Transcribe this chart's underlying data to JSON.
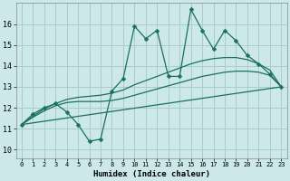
{
  "xlabel": "Humidex (Indice chaleur)",
  "bg_color": "#cce8e8",
  "grid_color": "#aacccc",
  "line_color": "#1a7060",
  "x_ticks": [
    0,
    1,
    2,
    3,
    4,
    5,
    6,
    7,
    8,
    9,
    10,
    11,
    12,
    13,
    14,
    15,
    16,
    17,
    18,
    19,
    20,
    21,
    22,
    23
  ],
  "y_ticks": [
    10,
    11,
    12,
    13,
    14,
    15,
    16
  ],
  "xlim": [
    -0.5,
    23.5
  ],
  "ylim": [
    9.6,
    17.0
  ],
  "main_series": {
    "x": [
      0,
      1,
      2,
      3,
      4,
      5,
      6,
      7,
      8,
      9,
      10,
      11,
      12,
      13,
      14,
      15,
      16,
      17,
      18,
      19,
      20,
      21,
      22,
      23
    ],
    "y": [
      11.2,
      11.7,
      12.0,
      12.2,
      11.8,
      11.2,
      10.4,
      10.5,
      12.8,
      13.4,
      15.9,
      15.3,
      15.7,
      13.5,
      13.5,
      16.7,
      15.7,
      14.8,
      15.7,
      15.2,
      14.5,
      14.1,
      13.6,
      13.0
    ]
  },
  "smooth_lines": [
    {
      "x": [
        0,
        1,
        2,
        3,
        4,
        5,
        6,
        7,
        8,
        9,
        10,
        11,
        12,
        13,
        14,
        15,
        16,
        17,
        18,
        19,
        20,
        21,
        22,
        23
      ],
      "y": [
        11.2,
        11.55,
        11.85,
        12.1,
        12.25,
        12.3,
        12.3,
        12.3,
        12.35,
        12.45,
        12.6,
        12.75,
        12.9,
        13.05,
        13.2,
        13.35,
        13.5,
        13.6,
        13.7,
        13.75,
        13.75,
        13.7,
        13.55,
        13.0
      ]
    },
    {
      "x": [
        0,
        1,
        2,
        3,
        4,
        5,
        6,
        7,
        8,
        9,
        10,
        11,
        12,
        13,
        14,
        15,
        16,
        17,
        18,
        19,
        20,
        21,
        22,
        23
      ],
      "y": [
        11.2,
        11.6,
        11.95,
        12.2,
        12.4,
        12.5,
        12.55,
        12.6,
        12.7,
        12.85,
        13.1,
        13.3,
        13.5,
        13.7,
        13.9,
        14.1,
        14.25,
        14.35,
        14.4,
        14.4,
        14.3,
        14.1,
        13.8,
        13.0
      ]
    },
    {
      "x": [
        0,
        23
      ],
      "y": [
        11.2,
        13.0
      ]
    }
  ]
}
